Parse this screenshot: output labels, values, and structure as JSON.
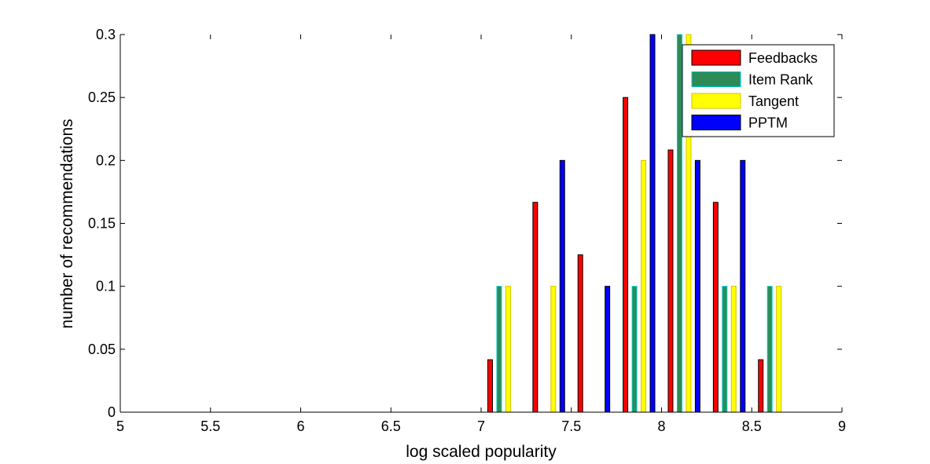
{
  "chart_data": {
    "type": "bar",
    "title": "",
    "xlabel": "log scaled popularity",
    "ylabel": "number of recommendations",
    "xlim": [
      5,
      9
    ],
    "ylim": [
      0,
      0.3
    ],
    "xticks": [
      5,
      5.5,
      6,
      6.5,
      7,
      7.5,
      8,
      8.5,
      9
    ],
    "xtick_labels": [
      "5",
      "5.5",
      "6",
      "6.5",
      "7",
      "7.5",
      "8",
      "8.5",
      "9"
    ],
    "yticks": [
      0,
      0.05,
      0.1,
      0.15,
      0.2,
      0.25,
      0.3
    ],
    "ytick_labels": [
      "0",
      "0.05",
      "0.1",
      "0.15",
      "0.2",
      "0.25",
      "0.3"
    ],
    "grid": false,
    "legend_position": "top-right",
    "bin_centers": [
      5.125,
      5.375,
      5.625,
      5.875,
      6.125,
      6.375,
      6.625,
      6.875,
      7.125,
      7.375,
      7.625,
      7.875,
      8.125,
      8.375,
      8.625,
      8.875
    ],
    "series": [
      {
        "name": "Feedbacks",
        "color": "#ff0000",
        "edge": "#000000",
        "values": [
          0,
          0,
          0,
          0,
          0,
          0,
          0,
          0,
          0.0417,
          0.1667,
          0.125,
          0.25,
          0.2083,
          0.1667,
          0.0417,
          0
        ]
      },
      {
        "name": "Item Rank",
        "color": "#2e8b57",
        "edge": "#00cccc",
        "values": [
          0,
          0,
          0,
          0,
          0,
          0,
          0,
          0,
          0.1,
          0,
          0,
          0.1,
          0.3,
          0.1,
          0.1,
          0
        ]
      },
      {
        "name": "Tangent",
        "color": "#ffff00",
        "edge": "#d8c000",
        "values": [
          0,
          0,
          0,
          0,
          0,
          0,
          0,
          0,
          0.1,
          0.1,
          0,
          0.2,
          0.3,
          0.1,
          0.1,
          0
        ]
      },
      {
        "name": "PPTM",
        "color": "#0000ff",
        "edge": "#000000",
        "values": [
          0,
          0,
          0,
          0,
          0,
          0,
          0,
          0,
          0,
          0.2,
          0.1,
          0.3,
          0.2,
          0.2,
          0,
          0
        ]
      }
    ]
  }
}
